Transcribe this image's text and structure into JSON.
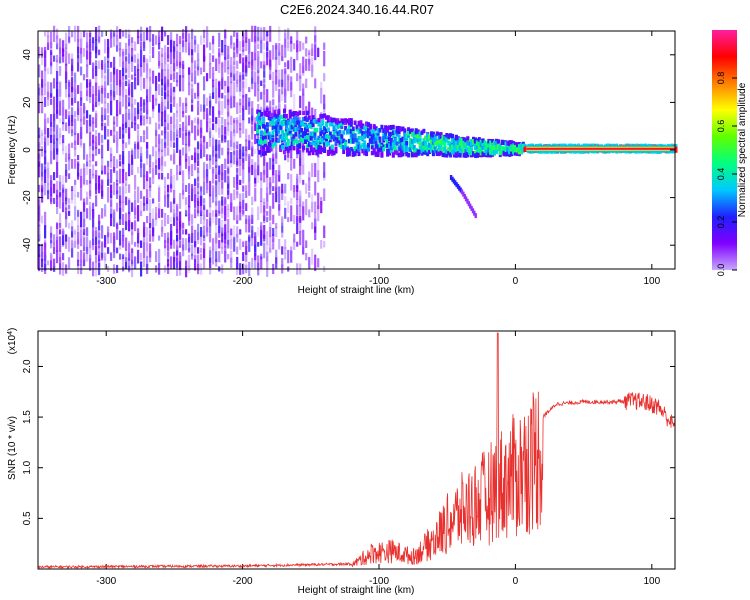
{
  "title": "C2E6.2024.340.16.44.R07",
  "chart_data": [
    {
      "type": "heatmap",
      "name": "spectrogram",
      "xlabel": "Height of straight line (km)",
      "ylabel": "Frequency (Hz)",
      "xlim": [
        -350,
        117
      ],
      "ylim": [
        -50,
        50
      ],
      "xticks": [
        -300,
        -200,
        -100,
        0,
        100
      ],
      "xtick_labels": [
        "-300",
        "-200",
        "-100",
        "0",
        "100"
      ],
      "yticks": [
        -40,
        -20,
        0,
        20,
        40
      ],
      "ytick_labels": [
        "-40",
        "-20",
        "0",
        "20",
        "40"
      ],
      "colorbar": {
        "label": "Normalized spectral amplitude",
        "range": [
          0,
          1
        ],
        "ticks": [
          0.0,
          0.2,
          0.4,
          0.6,
          0.8
        ],
        "tick_labels": [
          "0.0",
          "0.2",
          "0.4",
          "0.6",
          "0.8"
        ],
        "colormap": [
          "#c8a8ff",
          "#8000ff",
          "#2020ff",
          "#00c8ff",
          "#00ff80",
          "#60ff00",
          "#ffff00",
          "#ff8000",
          "#ff0000",
          "#ff20a0"
        ]
      },
      "features": {
        "noise_region_x": [
          -350,
          -140
        ],
        "signal_trace": [
          [
            -190,
            8
          ],
          [
            -150,
            7
          ],
          [
            -100,
            4
          ],
          [
            -70,
            3
          ],
          [
            -50,
            2
          ],
          [
            -30,
            1
          ],
          [
            0,
            0.5
          ],
          [
            117,
            0.5
          ]
        ],
        "secondary_trace": [
          [
            -48,
            -12
          ],
          [
            -40,
            -18
          ],
          [
            -30,
            -28
          ]
        ]
      }
    },
    {
      "type": "line",
      "name": "snr",
      "xlabel": "Height of straight line (km)",
      "ylabel": "SNR (10 * v/v)",
      "multiplier": "(x10",
      "multiplier_exp": "4",
      "multiplier_close": ")",
      "xlim": [
        -350,
        117
      ],
      "ylim": [
        0,
        2.35
      ],
      "xticks": [
        -300,
        -200,
        -100,
        0,
        100
      ],
      "xtick_labels": [
        "-300",
        "-200",
        "-100",
        "0",
        "100"
      ],
      "yticks": [
        0.5,
        1.0,
        1.5,
        2.0
      ],
      "ytick_labels": [
        "0.5",
        "1.0",
        "1.5",
        "2.0"
      ],
      "color": "#e8312e",
      "envelope": {
        "x": [
          -350,
          -200,
          -120,
          -105,
          -90,
          -75,
          -60,
          -50,
          -40,
          -30,
          -20,
          -15,
          -10,
          -5,
          0,
          10,
          20,
          30,
          50,
          70,
          85,
          95,
          105,
          117
        ],
        "y": [
          0.02,
          0.03,
          0.05,
          0.2,
          0.22,
          0.15,
          0.35,
          0.55,
          0.7,
          0.8,
          0.9,
          1.0,
          1.05,
          1.1,
          1.15,
          1.3,
          1.5,
          1.63,
          1.65,
          1.65,
          1.66,
          1.65,
          1.6,
          1.4
        ]
      },
      "peak": {
        "x": -13,
        "y": 2.33
      }
    }
  ]
}
